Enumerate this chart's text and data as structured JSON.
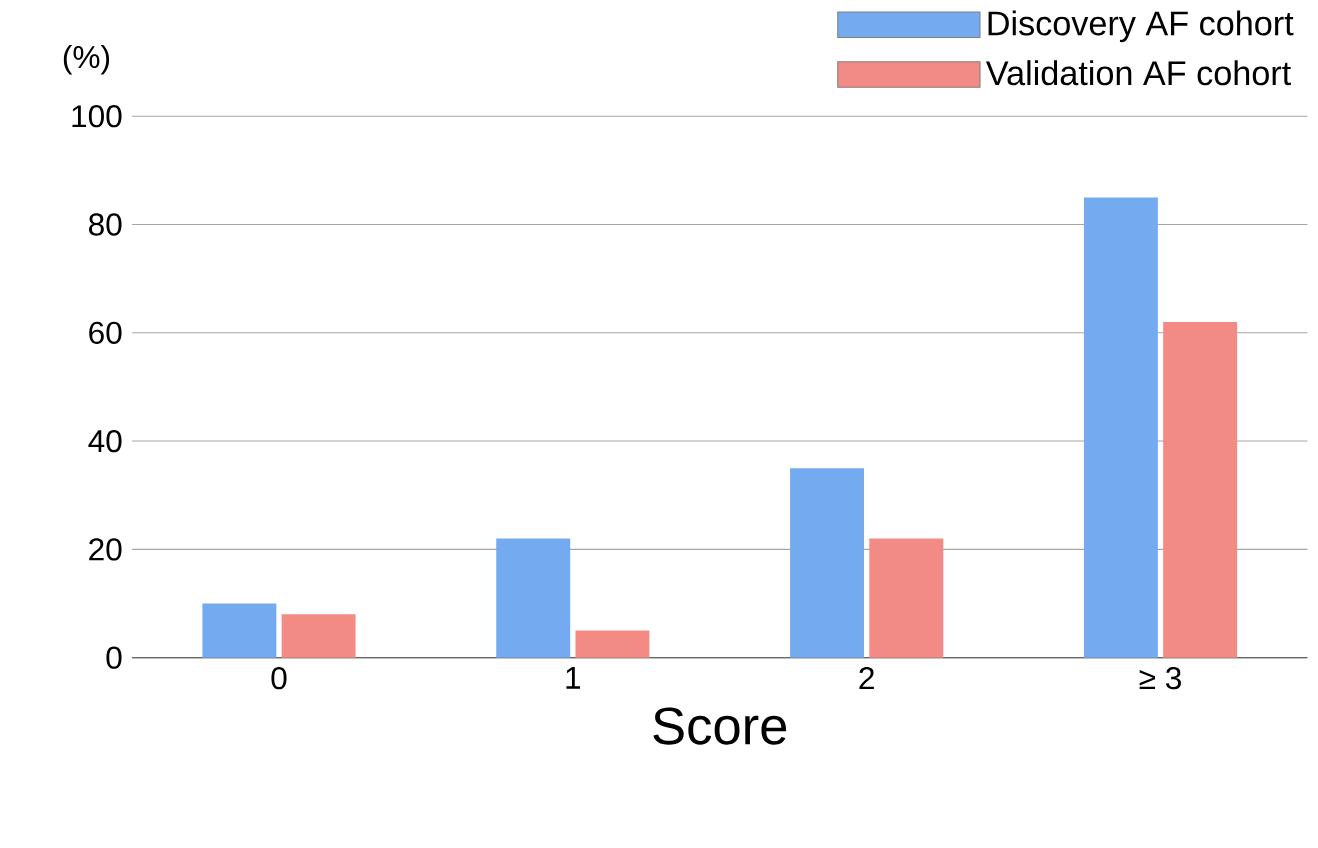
{
  "chart_data": {
    "type": "bar",
    "ylabel": "(%)",
    "xlabel": "Score",
    "categories": [
      "0",
      "1",
      "2",
      "≥ 3"
    ],
    "series": [
      {
        "name": "Discovery AF cohort",
        "color": "#73aaf0",
        "values": [
          10,
          22,
          35,
          85
        ]
      },
      {
        "name": "Validation AF cohort",
        "color": "#f28b85",
        "values": [
          8,
          5,
          22,
          62
        ]
      }
    ],
    "ylim": [
      0,
      100
    ],
    "yticks": [
      0,
      20,
      40,
      60,
      80,
      100
    ],
    "grid": "y",
    "legend": "top right"
  }
}
